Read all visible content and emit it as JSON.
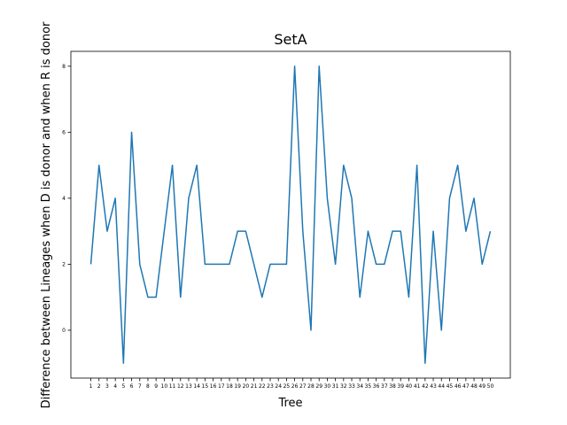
{
  "chart_data": {
    "type": "line",
    "title": "SetA",
    "xlabel": "Tree",
    "ylabel": "Difference between Lineages when D is donor and when R is donor",
    "x": [
      1,
      2,
      3,
      4,
      5,
      6,
      7,
      8,
      9,
      10,
      11,
      12,
      13,
      14,
      15,
      16,
      17,
      18,
      19,
      20,
      21,
      22,
      23,
      24,
      25,
      26,
      27,
      28,
      29,
      30,
      31,
      32,
      33,
      34,
      35,
      36,
      37,
      38,
      39,
      40,
      41,
      42,
      43,
      44,
      45,
      46,
      47,
      48,
      49,
      50
    ],
    "series": [
      {
        "values": [
          2,
          5,
          3,
          4,
          -1,
          6,
          2,
          1,
          1,
          3,
          5,
          1,
          4,
          5,
          2,
          2,
          2,
          2,
          3,
          3,
          2,
          1,
          2,
          2,
          2,
          8,
          3,
          0,
          8,
          4,
          2,
          5,
          4,
          1,
          3,
          2,
          2,
          3,
          3,
          1,
          5,
          -1,
          3,
          0,
          4,
          5,
          3,
          4,
          2,
          3
        ],
        "color": "#1f77b4"
      }
    ],
    "ylim": [
      -1.45,
      8.45
    ],
    "xlim": [
      -1.45,
      52.45
    ],
    "yticks": [
      0,
      2,
      4,
      6,
      8
    ],
    "xticks": [
      "1",
      "2",
      "3",
      "4",
      "5",
      "6",
      "7",
      "8",
      "9",
      "10",
      "11",
      "12",
      "13",
      "14",
      "15",
      "16",
      "17",
      "18",
      "19",
      "20",
      "21",
      "22",
      "23",
      "24",
      "25",
      "26",
      "27",
      "28",
      "29",
      "30",
      "31",
      "32",
      "33",
      "34",
      "35",
      "36",
      "37",
      "38",
      "39",
      "40",
      "41",
      "42",
      "43",
      "44",
      "45",
      "46",
      "47",
      "48",
      "49",
      "50"
    ],
    "grid": false,
    "legend": "none"
  }
}
